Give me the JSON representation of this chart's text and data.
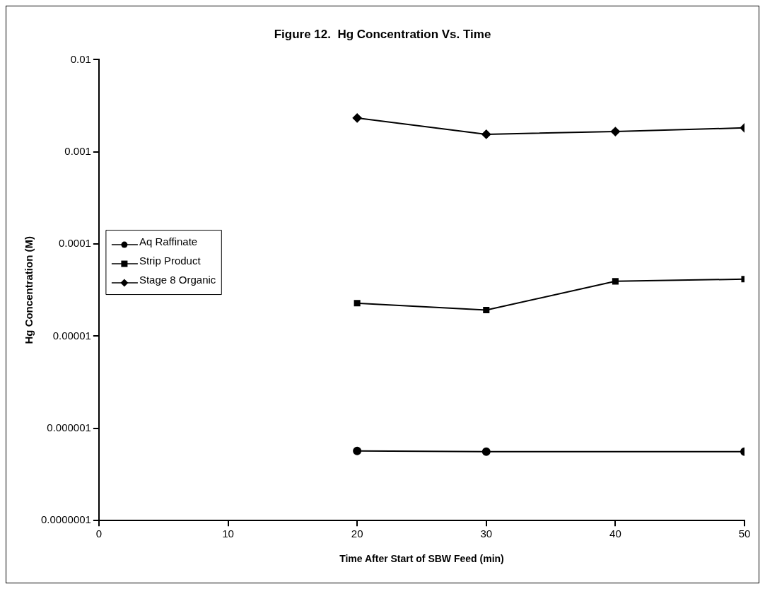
{
  "chart_data": {
    "type": "line",
    "title": "Figure 12.  Hg Concentration Vs. Time",
    "xlabel": "Time After Start of SBW Feed (min)",
    "ylabel": "Hg Concentration (M)",
    "x": [
      20,
      30,
      40,
      50
    ],
    "series": [
      {
        "name": "Aq Raffinate",
        "color": "#000000",
        "marker": "circle",
        "values": [
          5.7e-07,
          5.6e-07,
          null,
          5.6e-07
        ]
      },
      {
        "name": "Strip Product",
        "color": "#000000",
        "marker": "square",
        "values": [
          2.28e-05,
          1.92e-05,
          3.94e-05,
          4.16e-05
        ]
      },
      {
        "name": "Stage 8 Organic",
        "color": "#000000",
        "marker": "diamond",
        "values": [
          0.00233,
          0.00155,
          0.00166,
          0.00182
        ]
      }
    ],
    "log": "y",
    "xlim": [
      0,
      50
    ],
    "xticks": [
      0,
      10,
      20,
      30,
      40,
      50
    ],
    "ylim": [
      1e-07,
      0.01
    ],
    "yticks": [
      {
        "value": 1e-07,
        "label": "0.0000001"
      },
      {
        "value": 1e-06,
        "label": "0.000001"
      },
      {
        "value": 1e-05,
        "label": "0.00001"
      },
      {
        "value": 0.0001,
        "label": "0.0001"
      },
      {
        "value": 0.001,
        "label": "0.001"
      },
      {
        "value": 0.01,
        "label": "0.01"
      }
    ],
    "grid": false,
    "legend": "left",
    "line_style": "solid"
  }
}
